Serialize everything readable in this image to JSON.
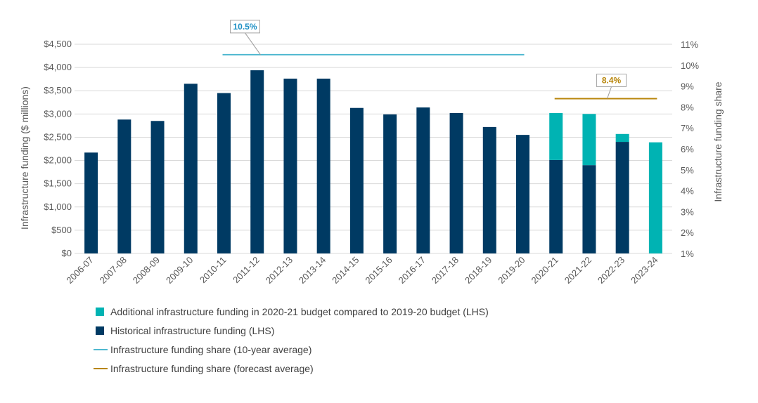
{
  "chart_data": {
    "type": "bar",
    "stacked": true,
    "categories": [
      "2006-07",
      "2007-08",
      "2008-09",
      "2009-10",
      "2010-11",
      "2011-12",
      "2012-13",
      "2013-14",
      "2014-15",
      "2015-16",
      "2016-17",
      "2017-18",
      "2018-19",
      "2019-20",
      "2020-21",
      "2021-22",
      "2022-23",
      "2023-24"
    ],
    "series": [
      {
        "name": "Historical infrastructure funding (LHS)",
        "color": "#003a63",
        "axis": "left",
        "values": [
          2170,
          2880,
          2850,
          3650,
          3450,
          3940,
          3760,
          3760,
          3130,
          2990,
          3140,
          3020,
          2720,
          2550,
          2010,
          1900,
          2400,
          0
        ]
      },
      {
        "name": "Additional infrastructure funding in 2020-21 budget compared to 2019-20 budget (LHS)",
        "color": "#00b3b3",
        "axis": "left",
        "values": [
          0,
          0,
          0,
          0,
          0,
          0,
          0,
          0,
          0,
          0,
          0,
          0,
          0,
          0,
          1010,
          1100,
          170,
          2390
        ]
      }
    ],
    "lines": [
      {
        "name": "Infrastructure funding share (10-year average)",
        "color": "#4fb8d0",
        "axis": "right",
        "value": 10.5,
        "start": "2010-11",
        "end": "2019-20",
        "label": "10.5%",
        "label_color": "#1c8fc4"
      },
      {
        "name": "Infrastructure funding share (forecast average)",
        "color": "#b8860b",
        "axis": "right",
        "value": 8.4,
        "start": "2020-21",
        "end": "2023-24",
        "label": "8.4%",
        "label_color": "#b8860b"
      }
    ],
    "legend_order": [
      "Additional infrastructure funding in 2020-21 budget compared to 2019-20 budget (LHS)",
      "Historical infrastructure funding (LHS)",
      "Infrastructure funding share (10-year average)",
      "Infrastructure funding share (forecast average)"
    ],
    "ylabel": "Infrastructure funding ($ millions)",
    "y2label": "Infrastructure funding  share",
    "ylim": [
      0,
      4500
    ],
    "yticks": [
      0,
      500,
      1000,
      1500,
      2000,
      2500,
      3000,
      3500,
      4000,
      4500
    ],
    "ytick_labels": [
      "$0",
      "$500",
      "$1,000",
      "$1,500",
      "$2,000",
      "$2,500",
      "$3,000",
      "$3,500",
      "$4,000",
      "$4,500"
    ],
    "y2lim": [
      1,
      11
    ],
    "y2ticks": [
      1,
      2,
      3,
      4,
      5,
      6,
      7,
      8,
      9,
      10,
      11
    ],
    "y2tick_labels": [
      "1%",
      "2%",
      "3%",
      "4%",
      "5%",
      "6%",
      "7%",
      "8%",
      "9%",
      "10%",
      "11%"
    ],
    "grid": true,
    "gridline_color": "#d9d9d9",
    "legend_position": "bottom"
  }
}
